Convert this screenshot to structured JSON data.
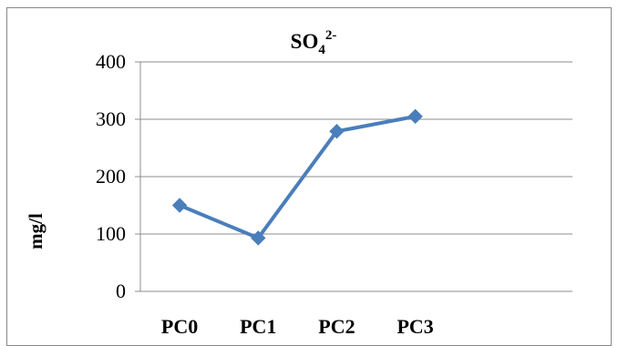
{
  "chart_data": {
    "type": "line",
    "title_main": "SO",
    "title_sub": "4",
    "title_sup": "2-",
    "xlabel": "",
    "ylabel": "mg/l",
    "categories": [
      "PC0",
      "PC1",
      "PC2",
      "PC3"
    ],
    "ylim": [
      0,
      400
    ],
    "yticks": [
      "0",
      "100",
      "200",
      "300",
      "400"
    ],
    "ytick_values": [
      0,
      100,
      200,
      300,
      400
    ],
    "grid": true,
    "series": [
      {
        "values": [
          150,
          93,
          279,
          305
        ],
        "color": "#4a7ebb",
        "marker": "diamond"
      }
    ]
  }
}
